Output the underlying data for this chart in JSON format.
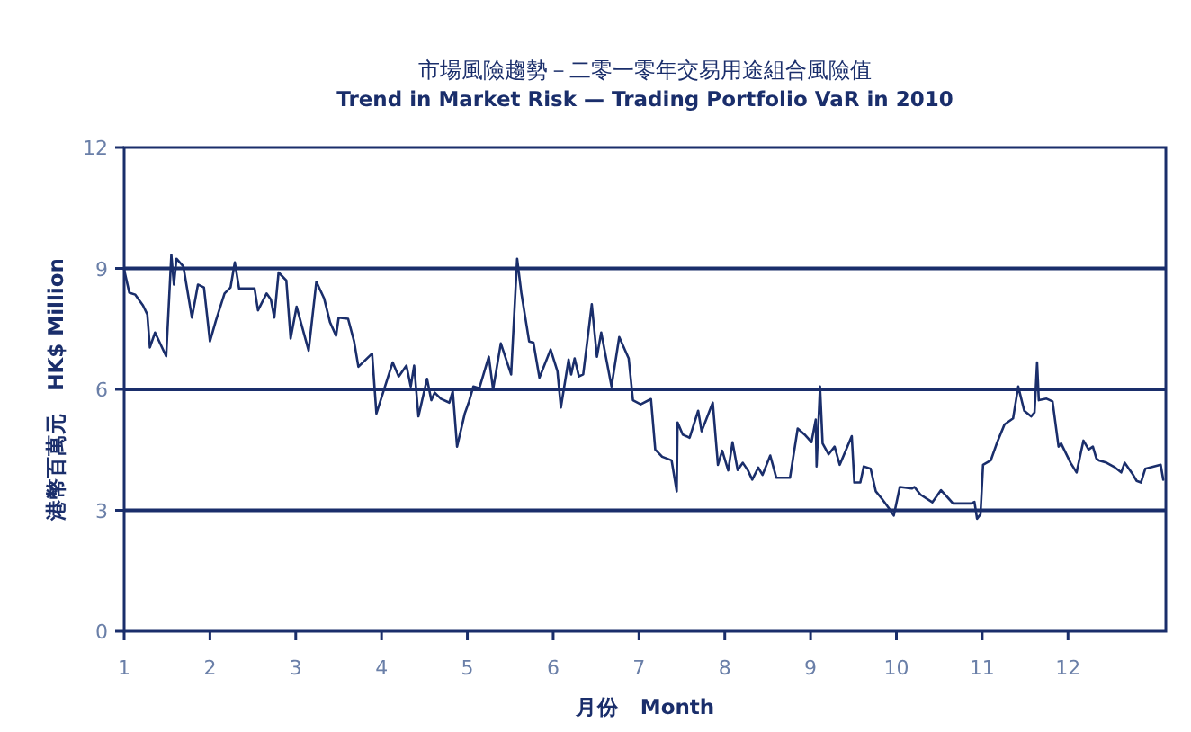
{
  "chart_data": {
    "type": "line",
    "title": "市場風險趨勢－二零一零年交易用途組合風險值",
    "subtitle": "Trend in Market Risk — Trading Portfolio VaR in 2010",
    "xlabel": "月份　Month",
    "ylabel": "港幣百萬元　HK$ Million",
    "xlim": [
      1,
      13.14
    ],
    "xticks": [
      1,
      2,
      3,
      4,
      5,
      6,
      7,
      8,
      9,
      10,
      11,
      12
    ],
    "ylim": [
      0,
      12
    ],
    "yticks": [
      0,
      3,
      6,
      9,
      12
    ],
    "grid": "y",
    "marker": "none",
    "line_style": "solid",
    "series": [
      {
        "color": "#1a2e6b",
        "x": [
          1.0,
          1.06,
          1.13,
          1.22,
          1.27,
          1.3,
          1.36,
          1.49,
          1.55,
          1.58,
          1.61,
          1.69,
          1.79,
          1.86,
          1.93,
          2.0,
          2.07,
          2.17,
          2.24,
          2.29,
          2.34,
          2.52,
          2.56,
          2.66,
          2.71,
          2.75,
          2.8,
          2.89,
          2.94,
          3.01,
          3.15,
          3.24,
          3.33,
          3.4,
          3.47,
          3.5,
          3.61,
          3.68,
          3.73,
          3.89,
          3.94,
          4.04,
          4.13,
          4.2,
          4.29,
          4.34,
          4.38,
          4.43,
          4.53,
          4.58,
          4.62,
          4.69,
          4.79,
          4.83,
          4.88,
          4.97,
          5.02,
          5.07,
          5.14,
          5.25,
          5.3,
          5.39,
          5.51,
          5.58,
          5.63,
          5.72,
          5.77,
          5.84,
          5.97,
          6.05,
          6.09,
          6.18,
          6.21,
          6.25,
          6.3,
          6.35,
          6.45,
          6.51,
          6.56,
          6.68,
          6.77,
          6.88,
          6.93,
          7.02,
          7.14,
          7.19,
          7.27,
          7.38,
          7.44,
          7.45,
          7.51,
          7.59,
          7.69,
          7.73,
          7.86,
          7.92,
          7.97,
          8.04,
          8.09,
          8.15,
          8.21,
          8.27,
          8.32,
          8.39,
          8.44,
          8.53,
          8.6,
          8.76,
          8.85,
          8.93,
          9.01,
          9.06,
          9.07,
          9.11,
          9.14,
          9.21,
          9.28,
          9.34,
          9.48,
          9.51,
          9.58,
          9.62,
          9.7,
          9.76,
          9.83,
          9.9,
          9.97,
          10.04,
          10.18,
          10.21,
          10.28,
          10.42,
          10.52,
          10.61,
          10.66,
          10.87,
          10.91,
          10.94,
          10.98,
          11.01,
          11.1,
          11.17,
          11.26,
          11.36,
          11.42,
          11.49,
          11.57,
          11.61,
          11.64,
          11.66,
          11.75,
          11.82,
          11.89,
          11.92,
          12.03,
          12.1,
          12.18,
          12.24,
          12.29,
          12.33,
          12.36,
          12.45,
          12.55,
          12.62,
          12.66,
          12.75,
          12.8,
          12.85,
          12.9,
          13.08,
          13.11
        ],
        "values": [
          8.97,
          8.4,
          8.35,
          8.08,
          7.86,
          7.04,
          7.41,
          6.82,
          9.34,
          8.6,
          9.24,
          9.05,
          7.78,
          8.6,
          8.53,
          7.19,
          7.71,
          8.38,
          8.53,
          9.15,
          8.5,
          8.5,
          7.96,
          8.38,
          8.23,
          7.78,
          8.9,
          8.7,
          7.26,
          8.05,
          6.96,
          8.67,
          8.26,
          7.66,
          7.33,
          7.78,
          7.75,
          7.19,
          6.56,
          6.89,
          5.4,
          6.07,
          6.67,
          6.32,
          6.59,
          6.07,
          6.59,
          5.33,
          6.26,
          5.73,
          5.92,
          5.77,
          5.67,
          5.96,
          4.58,
          5.4,
          5.7,
          6.07,
          6.03,
          6.81,
          6.0,
          7.14,
          6.37,
          9.24,
          8.38,
          7.19,
          7.16,
          6.29,
          6.99,
          6.45,
          5.55,
          6.74,
          6.37,
          6.77,
          6.32,
          6.37,
          8.11,
          6.81,
          7.41,
          6.07,
          7.3,
          6.77,
          5.73,
          5.63,
          5.76,
          4.51,
          4.33,
          4.24,
          3.47,
          5.18,
          4.88,
          4.8,
          5.47,
          4.96,
          5.67,
          4.13,
          4.48,
          3.99,
          4.69,
          4.0,
          4.18,
          3.99,
          3.76,
          4.06,
          3.88,
          4.36,
          3.81,
          3.81,
          5.03,
          4.88,
          4.69,
          5.25,
          4.09,
          6.07,
          4.66,
          4.39,
          4.58,
          4.13,
          4.84,
          3.69,
          3.69,
          4.09,
          4.03,
          3.47,
          3.29,
          3.09,
          2.87,
          3.58,
          3.54,
          3.58,
          3.39,
          3.2,
          3.5,
          3.29,
          3.17,
          3.17,
          3.21,
          2.79,
          2.9,
          4.13,
          4.24,
          4.66,
          5.13,
          5.28,
          6.07,
          5.47,
          5.33,
          5.43,
          6.67,
          5.73,
          5.77,
          5.7,
          4.58,
          4.66,
          4.18,
          3.94,
          4.73,
          4.51,
          4.58,
          4.29,
          4.24,
          4.18,
          4.06,
          3.94,
          4.18,
          3.91,
          3.73,
          3.69,
          4.03,
          4.13,
          3.76
        ]
      }
    ]
  }
}
